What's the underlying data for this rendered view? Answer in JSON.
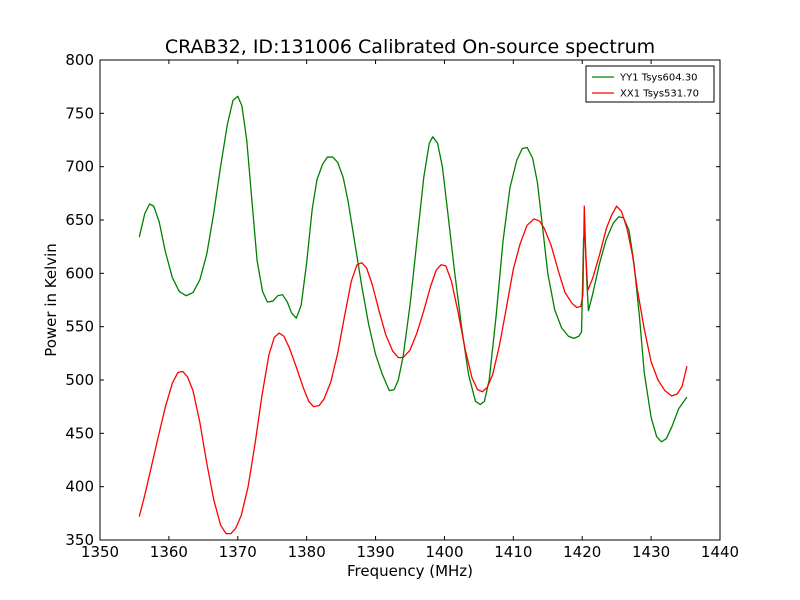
{
  "chart_data": {
    "type": "line",
    "title": "CRAB32, ID:131006 Calibrated On-source spectrum",
    "xlabel": "Frequency (MHz)",
    "ylabel": "Power in Kelvin",
    "xlim": [
      1350,
      1440
    ],
    "ylim": [
      350,
      800
    ],
    "xticks": [
      1350,
      1360,
      1370,
      1380,
      1390,
      1400,
      1410,
      1420,
      1430,
      1440
    ],
    "yticks": [
      350,
      400,
      450,
      500,
      550,
      600,
      650,
      700,
      750,
      800
    ],
    "grid": false,
    "legend_position": "top-right",
    "series": [
      {
        "name": "YY1 Tsys604.30",
        "color": "#008000",
        "points": [
          [
            1355.7,
            634
          ],
          [
            1356.5,
            656
          ],
          [
            1357.2,
            665
          ],
          [
            1357.8,
            663
          ],
          [
            1358.6,
            648
          ],
          [
            1359.5,
            620
          ],
          [
            1360.5,
            596
          ],
          [
            1361.5,
            583
          ],
          [
            1362.5,
            579
          ],
          [
            1363.5,
            582
          ],
          [
            1364.5,
            594
          ],
          [
            1365.5,
            618
          ],
          [
            1366.5,
            656
          ],
          [
            1367.5,
            700
          ],
          [
            1368.5,
            740
          ],
          [
            1369.3,
            762
          ],
          [
            1370.0,
            766
          ],
          [
            1370.6,
            757
          ],
          [
            1371.3,
            725
          ],
          [
            1372.0,
            672
          ],
          [
            1372.8,
            612
          ],
          [
            1373.6,
            583
          ],
          [
            1374.3,
            573
          ],
          [
            1375.1,
            574
          ],
          [
            1375.8,
            579
          ],
          [
            1376.5,
            580
          ],
          [
            1377.2,
            573
          ],
          [
            1377.8,
            563
          ],
          [
            1378.5,
            558
          ],
          [
            1379.2,
            570
          ],
          [
            1380.0,
            610
          ],
          [
            1380.8,
            660
          ],
          [
            1381.5,
            688
          ],
          [
            1382.3,
            702
          ],
          [
            1383.0,
            709
          ],
          [
            1383.8,
            709
          ],
          [
            1384.5,
            704
          ],
          [
            1385.3,
            690
          ],
          [
            1386.0,
            668
          ],
          [
            1387.0,
            628
          ],
          [
            1388.0,
            588
          ],
          [
            1389.0,
            552
          ],
          [
            1390.0,
            524
          ],
          [
            1391.0,
            505
          ],
          [
            1392.0,
            490
          ],
          [
            1392.7,
            491
          ],
          [
            1393.3,
            500
          ],
          [
            1394.0,
            522
          ],
          [
            1395.0,
            570
          ],
          [
            1396.0,
            630
          ],
          [
            1397.0,
            690
          ],
          [
            1397.8,
            722
          ],
          [
            1398.3,
            728
          ],
          [
            1399.0,
            722
          ],
          [
            1399.7,
            700
          ],
          [
            1400.5,
            656
          ],
          [
            1401.5,
            600
          ],
          [
            1402.5,
            549
          ],
          [
            1403.5,
            505
          ],
          [
            1404.5,
            480
          ],
          [
            1405.2,
            477
          ],
          [
            1405.8,
            480
          ],
          [
            1406.5,
            500
          ],
          [
            1407.5,
            560
          ],
          [
            1408.5,
            630
          ],
          [
            1409.5,
            680
          ],
          [
            1410.5,
            706
          ],
          [
            1411.3,
            717
          ],
          [
            1412.0,
            718
          ],
          [
            1412.8,
            708
          ],
          [
            1413.5,
            685
          ],
          [
            1414.3,
            640
          ],
          [
            1415.0,
            600
          ],
          [
            1416.0,
            566
          ],
          [
            1417.0,
            549
          ],
          [
            1418.0,
            541
          ],
          [
            1418.8,
            539
          ],
          [
            1419.5,
            541
          ],
          [
            1419.9,
            545
          ],
          [
            1420.2,
            633
          ],
          [
            1420.4,
            636
          ],
          [
            1420.7,
            588
          ],
          [
            1420.9,
            565
          ],
          [
            1421.5,
            580
          ],
          [
            1422.5,
            609
          ],
          [
            1423.5,
            632
          ],
          [
            1424.5,
            647
          ],
          [
            1425.3,
            653
          ],
          [
            1426.0,
            652
          ],
          [
            1426.8,
            640
          ],
          [
            1427.5,
            610
          ],
          [
            1428.3,
            560
          ],
          [
            1429.0,
            507
          ],
          [
            1430.0,
            465
          ],
          [
            1430.8,
            447
          ],
          [
            1431.5,
            442
          ],
          [
            1432.2,
            445
          ],
          [
            1433.0,
            456
          ],
          [
            1434.0,
            473
          ],
          [
            1435.2,
            484
          ]
        ]
      },
      {
        "name": "XX1 Tsys531.70",
        "color": "#ff0000",
        "points": [
          [
            1355.7,
            372
          ],
          [
            1356.5,
            392
          ],
          [
            1357.5,
            420
          ],
          [
            1358.5,
            448
          ],
          [
            1359.5,
            475
          ],
          [
            1360.5,
            497
          ],
          [
            1361.3,
            507
          ],
          [
            1362.0,
            508
          ],
          [
            1362.7,
            503
          ],
          [
            1363.5,
            490
          ],
          [
            1364.5,
            460
          ],
          [
            1365.5,
            422
          ],
          [
            1366.5,
            388
          ],
          [
            1367.5,
            364
          ],
          [
            1368.3,
            356
          ],
          [
            1369.0,
            356
          ],
          [
            1369.7,
            361
          ],
          [
            1370.5,
            373
          ],
          [
            1371.5,
            400
          ],
          [
            1372.5,
            440
          ],
          [
            1373.5,
            485
          ],
          [
            1374.5,
            523
          ],
          [
            1375.3,
            540
          ],
          [
            1376.0,
            544
          ],
          [
            1376.7,
            541
          ],
          [
            1377.5,
            530
          ],
          [
            1378.5,
            512
          ],
          [
            1379.5,
            493
          ],
          [
            1380.3,
            480
          ],
          [
            1381.0,
            475
          ],
          [
            1381.8,
            476
          ],
          [
            1382.5,
            482
          ],
          [
            1383.5,
            498
          ],
          [
            1384.5,
            525
          ],
          [
            1385.5,
            560
          ],
          [
            1386.5,
            593
          ],
          [
            1387.3,
            608
          ],
          [
            1388.0,
            610
          ],
          [
            1388.7,
            605
          ],
          [
            1389.5,
            590
          ],
          [
            1390.5,
            565
          ],
          [
            1391.5,
            542
          ],
          [
            1392.5,
            527
          ],
          [
            1393.3,
            521
          ],
          [
            1394.0,
            521
          ],
          [
            1395.0,
            528
          ],
          [
            1396.0,
            544
          ],
          [
            1397.0,
            565
          ],
          [
            1398.0,
            588
          ],
          [
            1398.8,
            603
          ],
          [
            1399.5,
            608
          ],
          [
            1400.2,
            607
          ],
          [
            1401.0,
            593
          ],
          [
            1402.0,
            563
          ],
          [
            1403.0,
            529
          ],
          [
            1404.0,
            502
          ],
          [
            1404.8,
            491
          ],
          [
            1405.5,
            489
          ],
          [
            1406.2,
            493
          ],
          [
            1407.0,
            505
          ],
          [
            1408.0,
            533
          ],
          [
            1409.0,
            568
          ],
          [
            1410.0,
            604
          ],
          [
            1411.0,
            628
          ],
          [
            1412.0,
            645
          ],
          [
            1413.0,
            651
          ],
          [
            1413.8,
            649
          ],
          [
            1414.5,
            642
          ],
          [
            1415.5,
            626
          ],
          [
            1416.5,
            603
          ],
          [
            1417.5,
            582
          ],
          [
            1418.5,
            572
          ],
          [
            1419.2,
            568
          ],
          [
            1419.8,
            569
          ],
          [
            1420.1,
            580
          ],
          [
            1420.3,
            663
          ],
          [
            1420.5,
            620
          ],
          [
            1420.8,
            584
          ],
          [
            1421.5,
            595
          ],
          [
            1422.5,
            617
          ],
          [
            1423.5,
            642
          ],
          [
            1424.3,
            655
          ],
          [
            1425.0,
            663
          ],
          [
            1425.7,
            658
          ],
          [
            1426.5,
            642
          ],
          [
            1427.3,
            617
          ],
          [
            1428.0,
            585
          ],
          [
            1429.0,
            548
          ],
          [
            1430.0,
            517
          ],
          [
            1431.0,
            500
          ],
          [
            1432.0,
            490
          ],
          [
            1433.0,
            485
          ],
          [
            1433.8,
            487
          ],
          [
            1434.5,
            494
          ],
          [
            1435.2,
            513
          ]
        ]
      }
    ]
  }
}
